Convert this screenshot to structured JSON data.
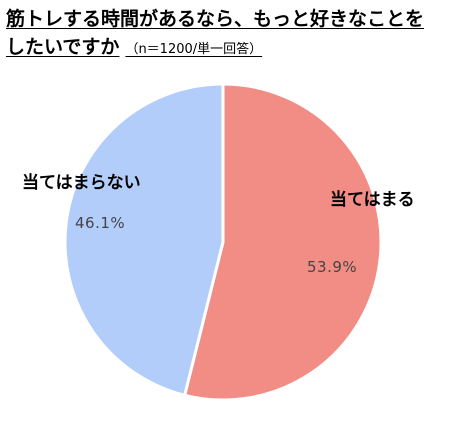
{
  "title": {
    "line1": "筋トレする時間があるなら、もっと好きなことを",
    "line2": "したいですか",
    "subtitle": "（n＝1200/単一回答）"
  },
  "chart_data": {
    "type": "pie",
    "title": "筋トレする時間があるなら、もっと好きなことをしたいですか",
    "subtitle": "（n＝1200/単一回答）",
    "slices": [
      {
        "label": "当てはまる",
        "value": 53.9,
        "value_label": "53.9%",
        "color": "#f28d85"
      },
      {
        "label": "当てはまらない",
        "value": 46.1,
        "value_label": "46.1%",
        "color": "#b3cdfb"
      }
    ],
    "start": "12 o'clock",
    "direction": "clockwise",
    "legend": "none",
    "labels": "beside slices"
  }
}
